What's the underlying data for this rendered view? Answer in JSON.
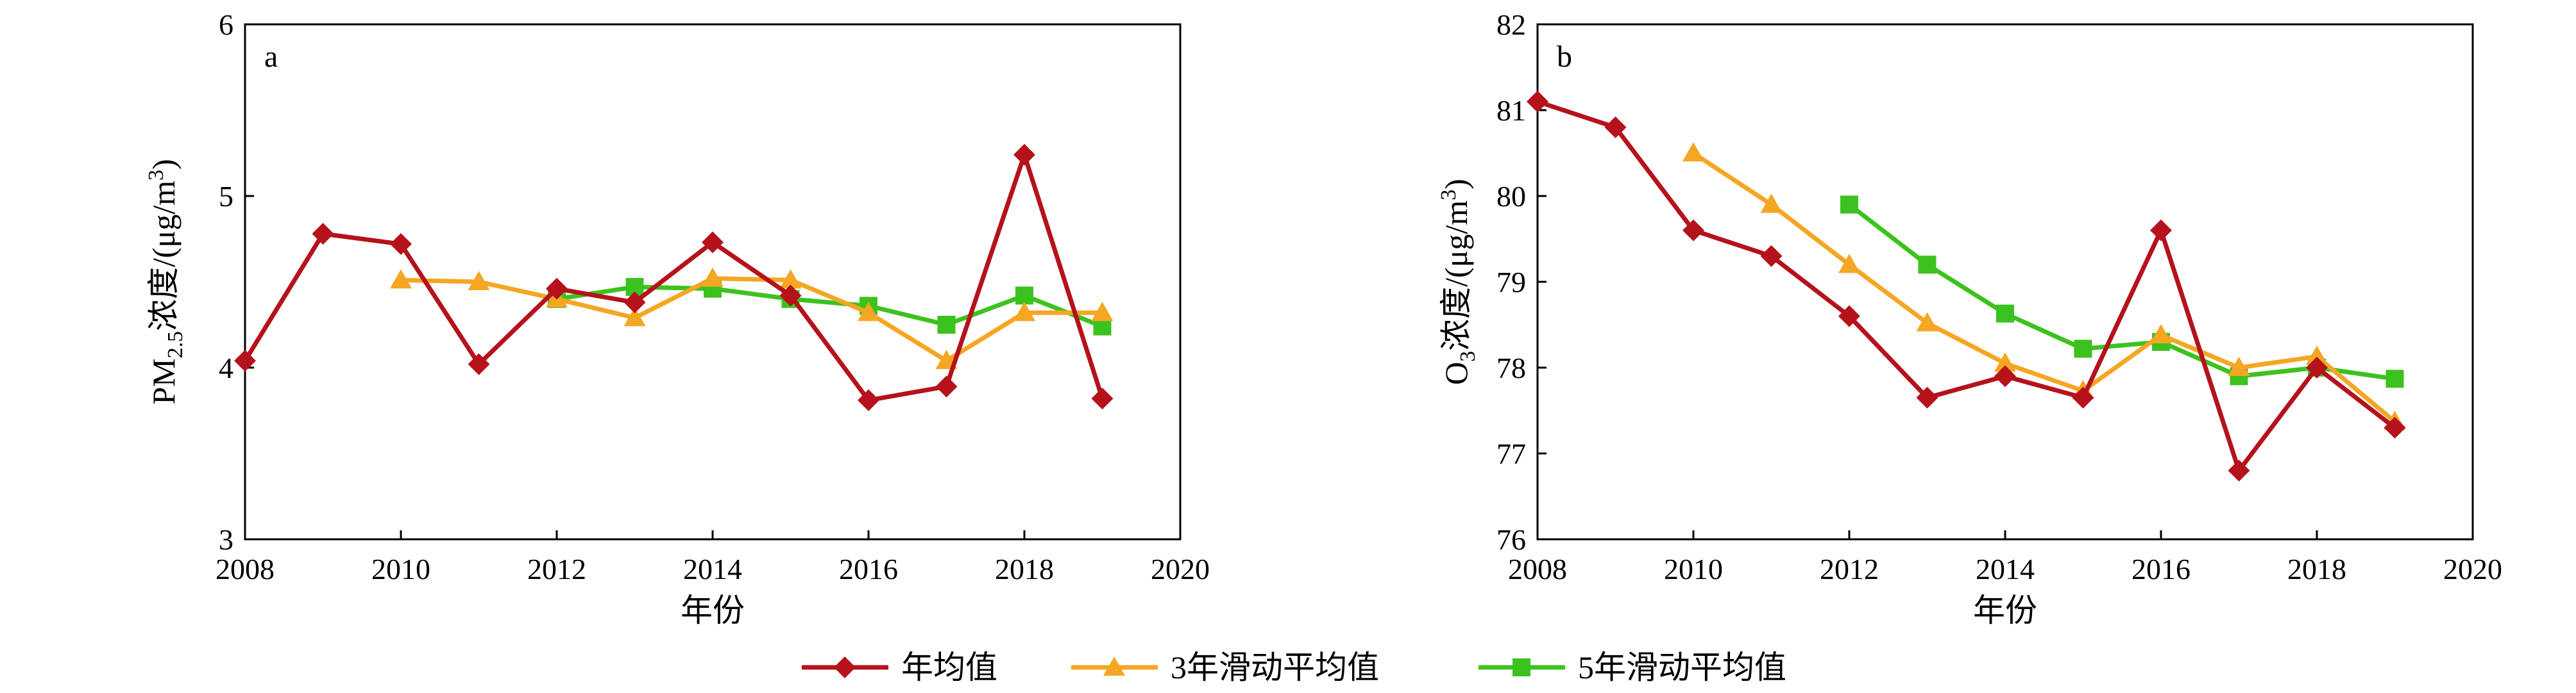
{
  "legend": {
    "position": "bottom-center",
    "items": [
      {
        "key": "annual",
        "label": "年均值"
      },
      {
        "key": "ma3",
        "label": "3年滑动平均值"
      },
      {
        "key": "ma5",
        "label": "5年滑动平均值"
      }
    ]
  },
  "colors": {
    "annual": "#B5121B",
    "ma3": "#F5A623",
    "ma5": "#3CC21E"
  },
  "chart_data": [
    {
      "type": "line",
      "panel_label": "a",
      "title": "",
      "xlabel": "年份",
      "ylabel": {
        "base": "PM",
        "sub": "2.5",
        "mid": "浓度/(μg/m",
        "sup": "3",
        "end": ")"
      },
      "xlim": [
        2008,
        2020
      ],
      "ylim": [
        3,
        6
      ],
      "xticks": [
        2008,
        2010,
        2012,
        2014,
        2016,
        2018,
        2020
      ],
      "yticks": [
        3,
        4,
        5,
        6
      ],
      "grid": false,
      "series": [
        {
          "key": "annual",
          "name": "年均值",
          "marker": "diamond",
          "x": [
            2008,
            2009,
            2010,
            2011,
            2012,
            2013,
            2014,
            2015,
            2016,
            2017,
            2018,
            2019
          ],
          "y": [
            4.04,
            4.78,
            4.72,
            4.02,
            4.46,
            4.38,
            4.73,
            4.42,
            3.81,
            3.89,
            5.24,
            3.82
          ]
        },
        {
          "key": "ma3",
          "name": "3年滑动平均值",
          "marker": "triangle",
          "x": [
            2010,
            2011,
            2012,
            2013,
            2014,
            2015,
            2016,
            2017,
            2018,
            2019
          ],
          "y": [
            4.51,
            4.5,
            4.4,
            4.29,
            4.52,
            4.51,
            4.32,
            4.04,
            4.32,
            4.32
          ]
        },
        {
          "key": "ma5",
          "name": "5年滑动平均值",
          "marker": "square",
          "x": [
            2012,
            2013,
            2014,
            2015,
            2016,
            2017,
            2018,
            2019
          ],
          "y": [
            4.4,
            4.47,
            4.46,
            4.4,
            4.36,
            4.25,
            4.42,
            4.24
          ]
        }
      ]
    },
    {
      "type": "line",
      "panel_label": "b",
      "title": "",
      "xlabel": "年份",
      "ylabel": {
        "base": "O",
        "sub": "3",
        "mid": "浓度/(μg/m",
        "sup": "3",
        "end": ")"
      },
      "xlim": [
        2008,
        2020
      ],
      "ylim": [
        76,
        82
      ],
      "xticks": [
        2008,
        2010,
        2012,
        2014,
        2016,
        2018,
        2020
      ],
      "yticks": [
        76,
        77,
        78,
        79,
        80,
        81,
        82
      ],
      "grid": false,
      "series": [
        {
          "key": "annual",
          "name": "年均值",
          "marker": "diamond",
          "x": [
            2008,
            2009,
            2010,
            2011,
            2012,
            2013,
            2014,
            2015,
            2016,
            2017,
            2018,
            2019
          ],
          "y": [
            81.1,
            80.8,
            79.6,
            79.3,
            78.6,
            77.65,
            77.9,
            77.65,
            79.6,
            76.8,
            78.0,
            77.3
          ]
        },
        {
          "key": "ma3",
          "name": "3年滑动平均值",
          "marker": "triangle",
          "x": [
            2010,
            2011,
            2012,
            2013,
            2014,
            2015,
            2016,
            2017,
            2018,
            2019
          ],
          "y": [
            80.5,
            79.9,
            79.2,
            78.52,
            78.05,
            77.73,
            78.38,
            78.0,
            78.13,
            77.37
          ]
        },
        {
          "key": "ma5",
          "name": "5年滑动平均值",
          "marker": "square",
          "x": [
            2012,
            2013,
            2014,
            2015,
            2016,
            2017,
            2018,
            2019
          ],
          "y": [
            79.9,
            79.2,
            78.63,
            78.22,
            78.3,
            77.9,
            78.0,
            77.87
          ]
        }
      ]
    }
  ]
}
